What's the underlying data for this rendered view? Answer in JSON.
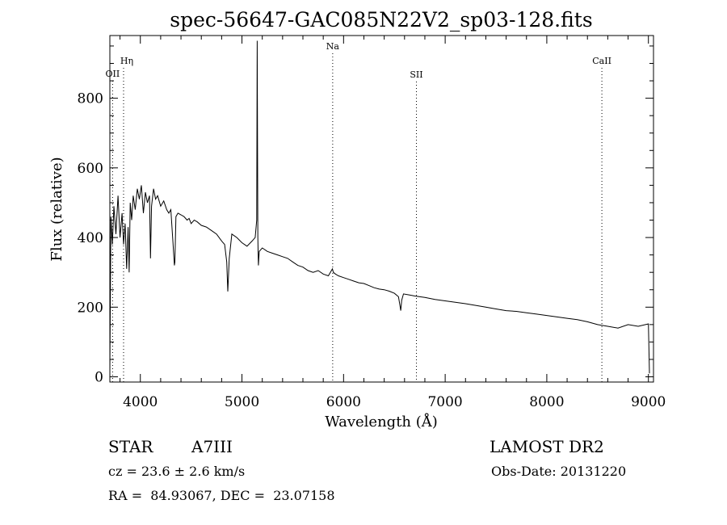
{
  "chart_data": {
    "type": "line",
    "title": "spec-56647-GAC085N22V2_sp03-128.fits",
    "xlabel": "Wavelength (Å)",
    "ylabel": "Flux (relative)",
    "xlim": [
      3700,
      9050
    ],
    "ylim": [
      -15,
      980
    ],
    "x_ticks": [
      4000,
      5000,
      6000,
      7000,
      8000,
      9000
    ],
    "y_ticks": [
      0,
      200,
      400,
      600,
      800
    ],
    "grid": false,
    "series": [
      {
        "x": [
          3700,
          3710,
          3725,
          3740,
          3760,
          3780,
          3800,
          3820,
          3835,
          3850,
          3865,
          3880,
          3890,
          3900,
          3915,
          3930,
          3950,
          3970,
          3990,
          4010,
          4030,
          4050,
          4070,
          4090,
          4100,
          4110,
          4130,
          4150,
          4170,
          4200,
          4230,
          4260,
          4280,
          4300,
          4320,
          4335,
          4340,
          4350,
          4370,
          4400,
          4430,
          4460,
          4480,
          4500,
          4530,
          4560,
          4600,
          4650,
          4700,
          4750,
          4800,
          4830,
          4850,
          4861,
          4875,
          4900,
          4950,
          5000,
          5050,
          5100,
          5130,
          5145,
          5150,
          5156,
          5162,
          5170,
          5200,
          5250,
          5300,
          5350,
          5400,
          5450,
          5500,
          5550,
          5600,
          5650,
          5700,
          5750,
          5800,
          5850,
          5890,
          5900,
          5920,
          5950,
          6000,
          6050,
          6100,
          6150,
          6200,
          6250,
          6300,
          6350,
          6400,
          6450,
          6500,
          6540,
          6555,
          6563,
          6572,
          6590,
          6650,
          6700,
          6800,
          6900,
          7000,
          7100,
          7200,
          7300,
          7400,
          7500,
          7600,
          7700,
          7800,
          7900,
          8000,
          8100,
          8200,
          8300,
          8400,
          8500,
          8600,
          8700,
          8800,
          8900,
          9000,
          9010
        ],
        "y": [
          20,
          460,
          380,
          490,
          410,
          520,
          400,
          470,
          380,
          440,
          310,
          430,
          300,
          500,
          450,
          520,
          480,
          540,
          510,
          550,
          470,
          530,
          500,
          520,
          340,
          490,
          540,
          510,
          520,
          490,
          505,
          480,
          470,
          480,
          390,
          320,
          330,
          460,
          470,
          465,
          460,
          450,
          455,
          440,
          450,
          445,
          435,
          430,
          420,
          410,
          390,
          380,
          330,
          245,
          340,
          410,
          400,
          385,
          375,
          390,
          400,
          450,
          965,
          400,
          320,
          360,
          370,
          360,
          355,
          350,
          345,
          340,
          330,
          320,
          315,
          305,
          300,
          305,
          295,
          290,
          310,
          300,
          295,
          290,
          285,
          280,
          275,
          270,
          268,
          262,
          256,
          252,
          250,
          246,
          240,
          230,
          205,
          190,
          220,
          238,
          235,
          232,
          228,
          222,
          218,
          214,
          210,
          205,
          200,
          195,
          190,
          188,
          184,
          180,
          176,
          172,
          168,
          164,
          158,
          150,
          145,
          140,
          150,
          145,
          152,
          10
        ]
      }
    ],
    "line_markers": [
      {
        "label": "OII",
        "x": 3727
      },
      {
        "label": "Hη",
        "x": 3835
      },
      {
        "label": "Na",
        "x": 5893
      },
      {
        "label": "SII",
        "x": 6717
      },
      {
        "label": "CaII",
        "x": 8542
      }
    ]
  },
  "info": {
    "object_type": "STAR",
    "subclass": "A7III",
    "survey": "LAMOST DR2",
    "cz": "cz = 23.6 ± 2.6 km/s",
    "obs_date": "Obs-Date: 20131220",
    "coords": "RA =  84.93067, DEC =  23.07158"
  }
}
